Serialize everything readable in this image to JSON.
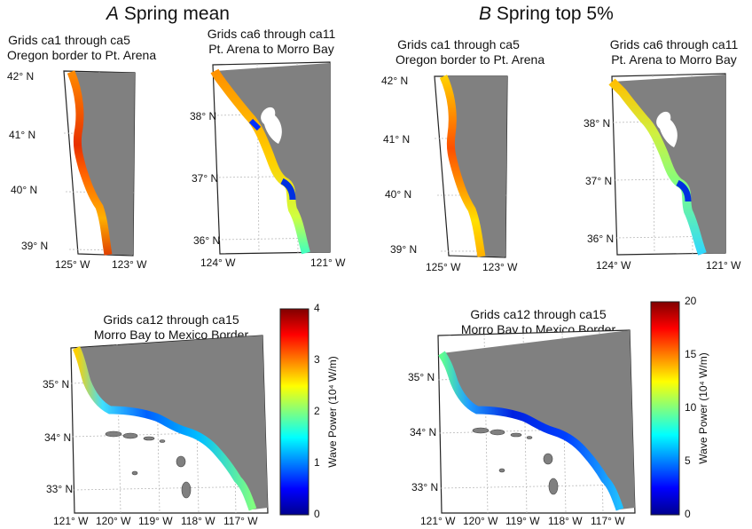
{
  "panels": {
    "a": {
      "letter": "A",
      "title": "Spring mean"
    },
    "b": {
      "letter": "B",
      "title": "Spring top 5%"
    }
  },
  "maps": {
    "north": {
      "line1": "Grids ca1 through ca5",
      "line2": "Oregon border to Pt. Arena",
      "lat_ticks": [
        "42°",
        "41°",
        "40°",
        "39°"
      ],
      "lon_ticks": [
        "125° W",
        "123° W"
      ]
    },
    "central": {
      "line1": "Grids ca6 through ca11",
      "line2": "Pt. Arena to Morro Bay",
      "lat_ticks": [
        "38°",
        "37°",
        "36°"
      ],
      "lon_ticks": [
        "124° W",
        "121° W"
      ]
    },
    "south_a": {
      "line1": "Grids ca12 through ca15",
      "line2": "Morro Bay to Mexico Border"
    },
    "south_b": {
      "line1": "Grids ca12 through ca15",
      "line2": "Morro Bay to Mexico Border"
    },
    "south_lat_ticks": [
      "35°",
      "34°",
      "33°"
    ],
    "south_lon_ticks": [
      "121° W",
      "120° W",
      "119° W",
      "118° W",
      "117° W"
    ]
  },
  "colorbars": {
    "a": {
      "ticks": [
        "4",
        "3",
        "2",
        "1",
        "0"
      ],
      "min": 0,
      "max": 4
    },
    "b": {
      "ticks": [
        "20",
        "15",
        "10",
        "5",
        "0"
      ],
      "min": 0,
      "max": 20
    },
    "label": "Wave Power (10⁴ W/m)"
  },
  "colors": {
    "land": "#808080",
    "low": "#0000a0",
    "high": "#a00000"
  }
}
